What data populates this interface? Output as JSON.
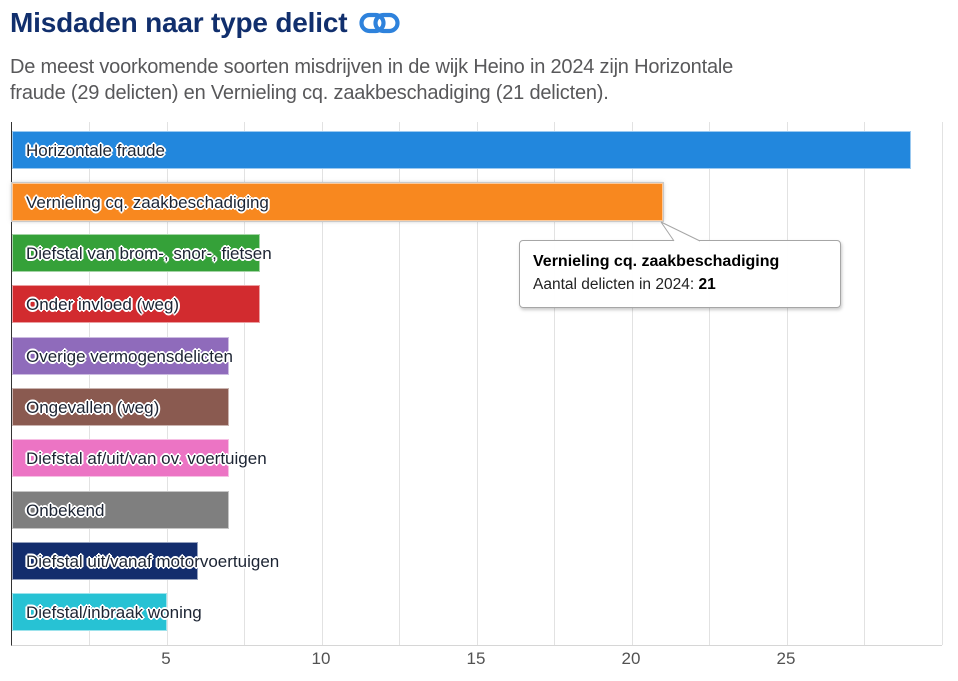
{
  "header": {
    "title": "Misdaden naar type delict",
    "subtitle_lines": [
      "De meest voorkomende soorten misdrijven in de wijk Heino in 2024 zijn Horizontale",
      "fraude (29 delicten) en Vernieling cq. zaakbeschadiging (21 delicten)."
    ]
  },
  "chart_data": {
    "type": "bar",
    "orientation": "horizontal",
    "title": "Misdaden naar type delict",
    "categories": [
      "Horizontale fraude",
      "Vernieling cq. zaakbeschadiging",
      "Diefstal van brom-, snor-, fietsen",
      "Onder invloed (weg)",
      "Overige vermogensdelicten",
      "Ongevallen (weg)",
      "Diefstal af/uit/van ov. voertuigen",
      "Onbekend",
      "Diefstal uit/vanaf motorvoertuigen",
      "Diefstal/inbraak woning"
    ],
    "values": [
      29,
      21,
      8,
      8,
      7,
      7,
      7,
      7,
      6,
      5
    ],
    "colors": [
      "#2287dd",
      "#f8881f",
      "#35a139",
      "#d22b2f",
      "#8f6bbb",
      "#8a5a50",
      "#ec74c4",
      "#7f7f7f",
      "#132d6d",
      "#27c2d4"
    ],
    "hovered_index": 1,
    "axis": {
      "min": 0,
      "max": 30,
      "grid_step": 2.5,
      "tick_labels": [
        5,
        10,
        15,
        20,
        25
      ]
    },
    "grid": true,
    "legend": "none",
    "tooltip": {
      "title": "Vernieling cq. zaakbeschadiging",
      "label": "Aantal delicten in 2024: ",
      "value": "21"
    }
  },
  "icon_colors": {
    "link_icon": "#2e82dc"
  }
}
